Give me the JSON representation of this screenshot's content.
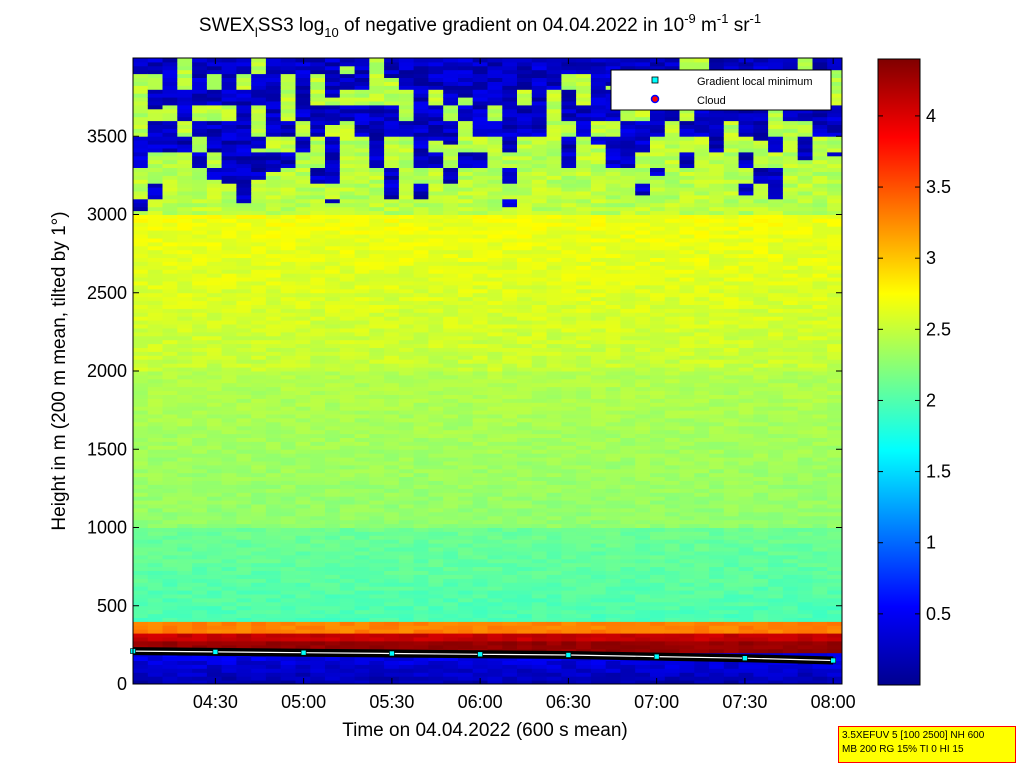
{
  "chart_data": {
    "type": "heatmap",
    "title": {
      "prefix": "SWEX",
      "prefix_sub": "l",
      "mid": "SS3 log",
      "mid_sub": "10",
      "middle": " of negative gradient on 04.04.2022 in 10",
      "exp1": "-9",
      "unit1": " m",
      "exp2": "-1",
      "unit2": " sr",
      "exp3": "-1"
    },
    "xlabel": "Time on 04.04.2022 (600 s mean)",
    "ylabel": "Height in m (200 m mean, tilted by 1°)",
    "x_ticks": [
      "04:30",
      "05:00",
      "05:30",
      "06:00",
      "06:30",
      "07:00",
      "07:30",
      "08:00"
    ],
    "xlim": [
      "04:02",
      "08:03"
    ],
    "y_ticks": [
      0,
      500,
      1000,
      1500,
      2000,
      2500,
      3000,
      3500
    ],
    "ylim": [
      0,
      4000
    ],
    "colorbar": {
      "ticks": [
        0.5,
        1,
        1.5,
        2,
        2.5,
        3,
        3.5,
        4
      ],
      "range": [
        0,
        4.4
      ],
      "colormap": "jet"
    },
    "legend": {
      "position": "top-right",
      "items": [
        {
          "label": "Gradient local minimum",
          "marker": "square",
          "color": "#00ffff"
        },
        {
          "label": "Cloud",
          "marker": "circle",
          "color": "#ff0000"
        }
      ]
    },
    "layers": [
      {
        "from_m": 0,
        "to_m": 180,
        "value_range": [
          0.1,
          0.6
        ],
        "note": "below minimum line"
      },
      {
        "from_m": 180,
        "to_m": 260,
        "value": 4.3
      },
      {
        "from_m": 260,
        "to_m": 320,
        "value": 4.1
      },
      {
        "from_m": 320,
        "to_m": 400,
        "value": 3.3
      },
      {
        "from_m": 400,
        "to_m": 1000,
        "value_range": [
          1.9,
          2.2
        ]
      },
      {
        "from_m": 1000,
        "to_m": 2000,
        "value_range": [
          2.2,
          2.5
        ]
      },
      {
        "from_m": 2000,
        "to_m": 3000,
        "value_range": [
          2.4,
          2.8
        ]
      },
      {
        "from_m": 3000,
        "to_m": 4000,
        "value_range": [
          0.05,
          2.5
        ],
        "note": "patchy, low values in clear regions"
      }
    ],
    "gradient_minimum_height_m": {
      "x": [
        "04:02",
        "04:30",
        "05:00",
        "05:30",
        "06:00",
        "06:30",
        "07:00",
        "07:30",
        "08:00"
      ],
      "y": [
        210,
        205,
        200,
        195,
        190,
        185,
        175,
        165,
        150
      ]
    }
  },
  "info_box": {
    "line1": "3.5XEFUV 5 [100 2500] NH 600",
    "line2": "MB 200 RG 15% TI 0 HI 15"
  },
  "colors": {
    "background": "#ffffff",
    "infobox_bg": "#ffff00",
    "infobox_border": "#ff0000"
  }
}
